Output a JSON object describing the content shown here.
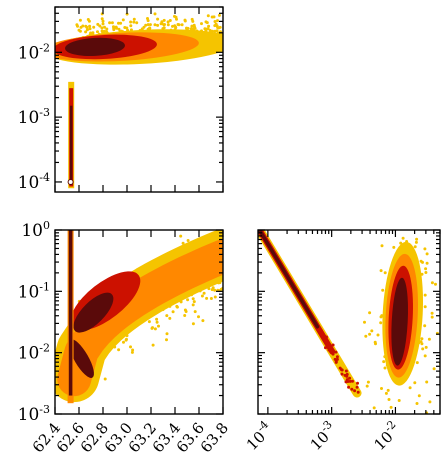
{
  "chart_data": [
    {
      "type": "scatter",
      "panel": "top-left",
      "xscale": "linear",
      "yscale": "log",
      "xlim": [
        62.4,
        63.8
      ],
      "ylim": [
        7e-05,
        0.05
      ],
      "x_ticks": [
        62.4,
        62.6,
        62.8,
        63.0,
        63.2,
        63.4,
        63.6,
        63.8
      ],
      "x_tick_labels": [],
      "y_ticks": [
        0.0001,
        0.001,
        0.01
      ],
      "y_tick_labels": [
        [
          "10",
          "-4"
        ],
        [
          "10",
          "-3"
        ],
        [
          "10",
          "-2"
        ]
      ],
      "density_levels": [
        "#f5c400",
        "#ff8800",
        "#cc1100",
        "#5a0a0a"
      ],
      "clusters": [
        {
          "x": [
            62.52,
            62.55
          ],
          "y": [
            8e-05,
            0.003
          ],
          "shape": "vertical-spike"
        },
        {
          "x": [
            62.55,
            63.8
          ],
          "y": [
            0.005,
            0.035
          ],
          "core_x": 62.8,
          "core_y": 0.013,
          "shape": "horizontal-band"
        }
      ],
      "marker": {
        "x": 62.53,
        "y": 0.0001
      }
    },
    {
      "type": "scatter",
      "panel": "bottom-left",
      "xscale": "linear",
      "yscale": "log",
      "xlim": [
        62.4,
        63.8
      ],
      "ylim": [
        0.001,
        1
      ],
      "x_ticks": [
        62.4,
        62.6,
        62.8,
        63.0,
        63.2,
        63.4,
        63.6,
        63.8
      ],
      "x_tick_labels": [
        "62.4",
        "62.6",
        "62.8",
        "63.0",
        "63.2",
        "63.4",
        "63.6",
        "63.8"
      ],
      "y_ticks": [
        0.001,
        0.01,
        0.1,
        1
      ],
      "y_tick_labels": [
        [
          "10",
          "-3"
        ],
        [
          "10",
          "-2"
        ],
        [
          "10",
          "-1"
        ],
        [
          "10",
          "0"
        ]
      ],
      "density_levels": [
        "#f5c400",
        "#ff8800",
        "#cc1100",
        "#5a0a0a"
      ],
      "clusters": [
        {
          "x": [
            62.5,
            62.58
          ],
          "y": [
            0.0015,
            1
          ],
          "shape": "vertical-spike"
        },
        {
          "x": [
            62.55,
            63.8
          ],
          "y": [
            0.002,
            0.9
          ],
          "core_x": 62.8,
          "core_y": 0.08,
          "shape": "rising-arc"
        }
      ]
    },
    {
      "type": "scatter",
      "panel": "bottom-right",
      "xscale": "log",
      "yscale": "log",
      "xlim": [
        7e-05,
        0.05
      ],
      "ylim": [
        0.001,
        1
      ],
      "x_ticks": [
        0.0001,
        0.001,
        0.01
      ],
      "x_tick_labels": [
        [
          "10",
          "-4"
        ],
        [
          "10",
          "-3"
        ],
        [
          "10",
          "-2"
        ]
      ],
      "y_ticks": [
        0.001,
        0.01,
        0.1,
        1
      ],
      "y_tick_labels": [],
      "density_levels": [
        "#f5c400",
        "#ff8800",
        "#cc1100",
        "#5a0a0a"
      ],
      "clusters": [
        {
          "x": [
            7e-05,
            0.0025
          ],
          "y": [
            0.002,
            1
          ],
          "shape": "diagonal-line"
        },
        {
          "x": [
            0.005,
            0.03
          ],
          "y": [
            0.002,
            0.7
          ],
          "core_x": 0.013,
          "core_y": 0.05,
          "shape": "vertical-blob"
        }
      ]
    }
  ]
}
